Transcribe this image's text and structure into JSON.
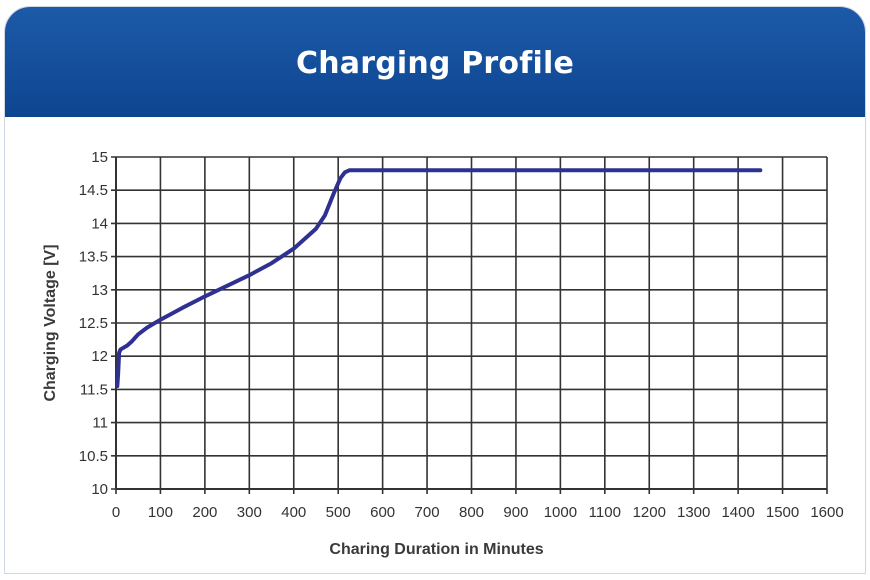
{
  "header": {
    "title": "Charging Profile"
  },
  "colors": {
    "header": "#0e4591",
    "line": "#2e3192",
    "grid": "#333333"
  },
  "chart_data": {
    "type": "line",
    "title": "Charging Profile",
    "xlabel": "Charing Duration in Minutes",
    "ylabel": "Charging Voltage [V]",
    "xlim": [
      0,
      1600
    ],
    "ylim": [
      10,
      15
    ],
    "xticks": [
      0,
      100,
      200,
      300,
      400,
      500,
      600,
      700,
      800,
      900,
      1000,
      1100,
      1200,
      1300,
      1400,
      1500,
      1600
    ],
    "yticks": [
      10,
      10.5,
      11,
      11.5,
      12,
      12.5,
      13,
      13.5,
      14,
      14.5,
      15
    ],
    "ytick_labels": [
      "10",
      "10.5",
      "11",
      "11.5",
      "12",
      "12.5",
      "13",
      "13.5",
      "14",
      "14.5",
      "15"
    ],
    "grid": true,
    "series": [
      {
        "x": [
          3,
          5,
          7,
          10,
          15,
          25,
          35,
          50,
          70,
          100,
          150,
          200,
          250,
          300,
          350,
          400,
          450,
          470,
          490,
          505,
          515,
          525,
          550,
          700,
          900,
          1100,
          1300,
          1450
        ],
        "y": [
          11.55,
          11.75,
          12.05,
          12.1,
          12.12,
          12.16,
          12.22,
          12.33,
          12.43,
          12.55,
          12.73,
          12.9,
          13.06,
          13.22,
          13.4,
          13.62,
          13.92,
          14.12,
          14.45,
          14.68,
          14.77,
          14.8,
          14.8,
          14.8,
          14.8,
          14.8,
          14.8,
          14.8
        ]
      }
    ]
  }
}
